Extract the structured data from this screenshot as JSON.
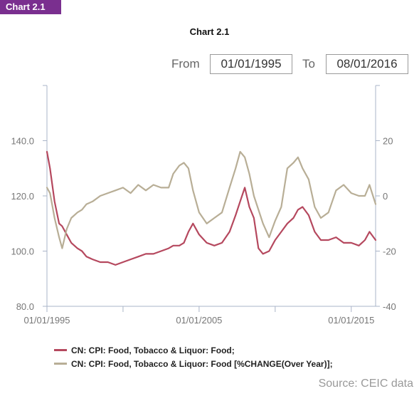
{
  "header": {
    "badge": "Chart 2.1"
  },
  "range": {
    "from_label": "From",
    "from_value": "01/01/1995",
    "to_label": "To",
    "to_value": "08/01/2016"
  },
  "source": "Source: CEIC data",
  "colors": {
    "series_index": "#b5485e",
    "series_change": "#b8ae96",
    "axis": "#aab4c8"
  },
  "chart_data": {
    "type": "line",
    "title": "Chart 2.1",
    "x_range": [
      1995.0,
      2016.6
    ],
    "x_tick_labels": [
      {
        "x": 1995.0,
        "label": "01/01/1995"
      },
      {
        "x": 2005.0,
        "label": "01/01/2005"
      },
      {
        "x": 2015.0,
        "label": "01/01/2015"
      }
    ],
    "x_minor_ticks": [
      2000.0,
      2010.0
    ],
    "y_left": {
      "range": [
        80,
        160
      ],
      "ticks": [
        80,
        100,
        120,
        140
      ],
      "tick_labels": [
        "80.0",
        "100.0",
        "120.0",
        "140.0"
      ]
    },
    "y_right": {
      "range": [
        -40,
        40
      ],
      "ticks": [
        -40,
        -20,
        0,
        20
      ],
      "tick_labels": [
        "-40",
        "-20",
        "0",
        "20"
      ]
    },
    "series": [
      {
        "name": "CN: CPI: Food, Tobacco & Liquor: Food;",
        "axis": "left",
        "color": "#b5485e",
        "x": [
          1995.0,
          1995.2,
          1995.5,
          1995.8,
          1996.0,
          1996.3,
          1996.6,
          1997.0,
          1997.3,
          1997.6,
          1998.0,
          1998.5,
          1999.0,
          1999.5,
          2000.0,
          2000.5,
          2001.0,
          2001.5,
          2002.0,
          2002.5,
          2003.0,
          2003.3,
          2003.7,
          2004.0,
          2004.3,
          2004.6,
          2005.0,
          2005.5,
          2006.0,
          2006.5,
          2007.0,
          2007.4,
          2007.7,
          2008.0,
          2008.3,
          2008.6,
          2008.9,
          2009.2,
          2009.6,
          2010.0,
          2010.4,
          2010.8,
          2011.2,
          2011.5,
          2011.8,
          2012.2,
          2012.6,
          2013.0,
          2013.5,
          2014.0,
          2014.5,
          2015.0,
          2015.5,
          2015.9,
          2016.2,
          2016.6
        ],
        "y": [
          136,
          130,
          118,
          110,
          109,
          106,
          103,
          101,
          100,
          98,
          97,
          96,
          96,
          95,
          96,
          97,
          98,
          99,
          99,
          100,
          101,
          102,
          102,
          103,
          107,
          110,
          106,
          103,
          102,
          103,
          107,
          113,
          118,
          123,
          116,
          112,
          101,
          99,
          100,
          104,
          107,
          110,
          112,
          115,
          116,
          113,
          107,
          104,
          104,
          105,
          103,
          103,
          102,
          104,
          107,
          104
        ]
      },
      {
        "name": "CN: CPI: Food, Tobacco & Liquor: Food [%CHANGE(Over Year)];",
        "axis": "right",
        "color": "#b8ae96",
        "x": [
          1995.0,
          1995.2,
          1995.5,
          1995.8,
          1996.0,
          1996.3,
          1996.6,
          1997.0,
          1997.3,
          1997.6,
          1998.0,
          1998.5,
          1999.0,
          1999.5,
          2000.0,
          2000.5,
          2001.0,
          2001.5,
          2002.0,
          2002.5,
          2003.0,
          2003.3,
          2003.7,
          2004.0,
          2004.3,
          2004.6,
          2005.0,
          2005.5,
          2006.0,
          2006.5,
          2007.0,
          2007.4,
          2007.7,
          2008.0,
          2008.3,
          2008.6,
          2008.9,
          2009.2,
          2009.6,
          2010.0,
          2010.4,
          2010.8,
          2011.2,
          2011.5,
          2011.8,
          2012.2,
          2012.6,
          2013.0,
          2013.5,
          2014.0,
          2014.5,
          2015.0,
          2015.5,
          2015.9,
          2016.2,
          2016.6
        ],
        "y": [
          3,
          1,
          -8,
          -15,
          -19,
          -12,
          -8,
          -6,
          -5,
          -3,
          -2,
          0,
          1,
          2,
          3,
          1,
          4,
          2,
          4,
          3,
          3,
          8,
          11,
          12,
          10,
          2,
          -6,
          -10,
          -8,
          -6,
          3,
          10,
          16,
          14,
          8,
          0,
          -5,
          -10,
          -15,
          -9,
          -4,
          10,
          12,
          14,
          10,
          6,
          -4,
          -8,
          -6,
          2,
          4,
          1,
          0,
          0,
          4,
          -3
        ]
      }
    ]
  }
}
